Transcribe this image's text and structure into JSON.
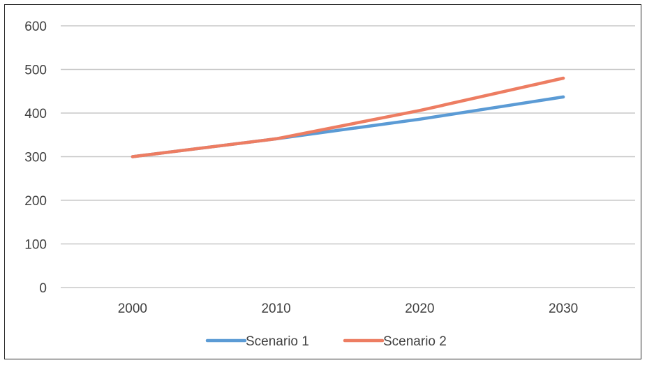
{
  "chart_data": {
    "type": "line",
    "title": "",
    "xlabel": "",
    "ylabel": "",
    "categories": [
      "2000",
      "2010",
      "2020",
      "2030"
    ],
    "x": [
      2000,
      2010,
      2020,
      2030
    ],
    "ylim": [
      0,
      600
    ],
    "yticks": [
      0,
      100,
      200,
      300,
      400,
      500,
      600
    ],
    "xticks": [
      "2000",
      "2010",
      "2020",
      "2030"
    ],
    "grid": "horizontal",
    "legend_position": "bottom",
    "series": [
      {
        "name": "Scenario 1",
        "color": "#5b9bd5",
        "values": [
          300,
          341,
          386,
          437
        ]
      },
      {
        "name": "Scenario 2",
        "color": "#ed7d62",
        "values": [
          300,
          341,
          406,
          480
        ]
      }
    ]
  }
}
